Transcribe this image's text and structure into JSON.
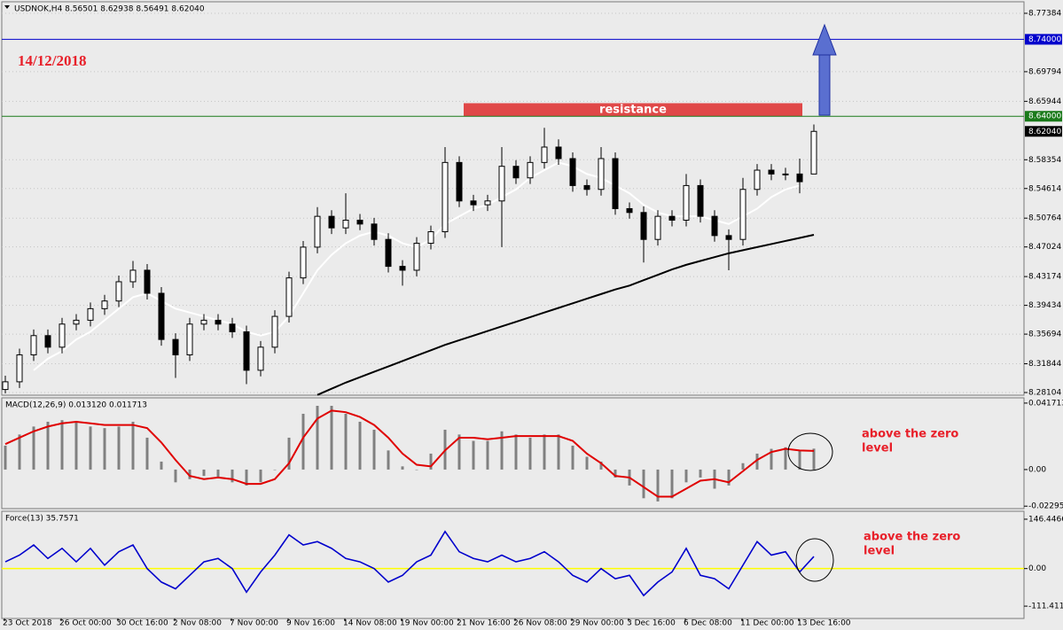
{
  "chart_data": [
    {
      "type": "candlestick",
      "title": "USDNOK,H4  8.56501 8.62938 8.56491 8.62040",
      "open": [
        8.285,
        8.295,
        8.33,
        8.355,
        8.34,
        8.37,
        8.375,
        8.39,
        8.4,
        8.425,
        8.44,
        8.41,
        8.35,
        8.33,
        8.37,
        8.375,
        8.37,
        8.36,
        8.31,
        8.34,
        8.38,
        8.43,
        8.47,
        8.51,
        8.495,
        8.505,
        8.5,
        8.48,
        8.445,
        8.44,
        8.475,
        8.49,
        8.58,
        8.53,
        8.525,
        8.53,
        8.575,
        8.56,
        8.58,
        8.6,
        8.585,
        8.55,
        8.545,
        8.585,
        8.52,
        8.515,
        8.48,
        8.51,
        8.505,
        8.55,
        8.51,
        8.485,
        8.48,
        8.545,
        8.57,
        8.565,
        8.565,
        8.56501
      ],
      "high": [
        8.303,
        8.338,
        8.363,
        8.363,
        8.378,
        8.383,
        8.398,
        8.408,
        8.433,
        8.452,
        8.448,
        8.418,
        8.358,
        8.378,
        8.383,
        8.383,
        8.378,
        8.368,
        8.348,
        8.388,
        8.438,
        8.478,
        8.522,
        8.518,
        8.54,
        8.513,
        8.508,
        8.488,
        8.453,
        8.483,
        8.498,
        8.6,
        8.588,
        8.538,
        8.538,
        8.6,
        8.583,
        8.588,
        8.625,
        8.61,
        8.593,
        8.558,
        8.6,
        8.593,
        8.528,
        8.523,
        8.518,
        8.518,
        8.565,
        8.558,
        8.518,
        8.493,
        8.56,
        8.578,
        8.578,
        8.573,
        8.585,
        8.62938
      ],
      "low": [
        8.28,
        8.287,
        8.322,
        8.332,
        8.332,
        8.362,
        8.367,
        8.382,
        8.392,
        8.417,
        8.402,
        8.342,
        8.3,
        8.322,
        8.362,
        8.362,
        8.352,
        8.292,
        8.302,
        8.332,
        8.372,
        8.422,
        8.462,
        8.487,
        8.487,
        8.492,
        8.472,
        8.437,
        8.42,
        8.432,
        8.467,
        8.482,
        8.522,
        8.517,
        8.517,
        8.47,
        8.552,
        8.552,
        8.572,
        8.577,
        8.542,
        8.537,
        8.537,
        8.512,
        8.507,
        8.45,
        8.472,
        8.497,
        8.497,
        8.502,
        8.477,
        8.44,
        8.472,
        8.537,
        8.557,
        8.557,
        8.54,
        8.56491
      ],
      "close": [
        8.295,
        8.33,
        8.355,
        8.34,
        8.37,
        8.375,
        8.39,
        8.4,
        8.425,
        8.44,
        8.41,
        8.35,
        8.33,
        8.37,
        8.375,
        8.37,
        8.36,
        8.31,
        8.34,
        8.38,
        8.43,
        8.47,
        8.51,
        8.495,
        8.505,
        8.5,
        8.48,
        8.445,
        8.44,
        8.475,
        8.49,
        8.58,
        8.53,
        8.525,
        8.53,
        8.575,
        8.56,
        8.58,
        8.6,
        8.585,
        8.55,
        8.545,
        8.585,
        8.52,
        8.515,
        8.48,
        8.51,
        8.505,
        8.55,
        8.51,
        8.485,
        8.48,
        8.545,
        8.57,
        8.565,
        8.565,
        8.555,
        8.6204
      ],
      "lines": [
        {
          "color": "#ffffff",
          "values": [
            null,
            null,
            8.31,
            8.325,
            8.335,
            8.35,
            8.36,
            8.375,
            8.39,
            8.405,
            8.41,
            8.4,
            8.39,
            8.385,
            8.38,
            8.375,
            8.37,
            8.36,
            8.355,
            8.36,
            8.38,
            8.41,
            8.44,
            8.46,
            8.475,
            8.485,
            8.49,
            8.485,
            8.475,
            8.47,
            8.48,
            8.5,
            8.51,
            8.52,
            8.525,
            8.535,
            8.545,
            8.56,
            8.57,
            8.58,
            8.575,
            8.565,
            8.56,
            8.55,
            8.54,
            8.525,
            8.515,
            8.51,
            8.51,
            8.51,
            8.505,
            8.5,
            8.51,
            8.52,
            8.535,
            8.545,
            8.55,
            null
          ]
        },
        {
          "color": "#000000",
          "values": [
            null,
            null,
            null,
            null,
            null,
            null,
            null,
            null,
            null,
            null,
            null,
            null,
            null,
            null,
            null,
            null,
            null,
            null,
            null,
            null,
            null,
            null,
            8.278,
            8.286,
            8.294,
            8.301,
            8.308,
            8.315,
            8.322,
            8.329,
            8.336,
            8.343,
            8.349,
            8.355,
            8.361,
            8.367,
            8.373,
            8.379,
            8.385,
            8.391,
            8.397,
            8.403,
            8.409,
            8.415,
            8.42,
            8.427,
            8.434,
            8.441,
            8.447,
            8.452,
            8.457,
            8.462,
            8.466,
            8.47,
            8.474,
            8.478,
            8.482,
            8.486
          ]
        }
      ],
      "hlines": [
        {
          "value": 8.74,
          "label": "8.74000",
          "color": "#0000cc"
        },
        {
          "value": 8.64,
          "label": "8.64000",
          "color": "#1a7a1a"
        }
      ],
      "price_label": {
        "value": 8.6204,
        "label": "8.62040"
      },
      "resistance": {
        "label": "resistance",
        "range": [
          8.64,
          8.657
        ],
        "color": "#e04848"
      },
      "date_label": "14/12/2018",
      "ylim": [
        8.2776,
        8.7888
      ],
      "yticks": [
        8.77384,
        8.69794,
        8.65944,
        8.58354,
        8.54614,
        8.50764,
        8.47024,
        8.43174,
        8.39434,
        8.35694,
        8.31844,
        8.28104
      ],
      "grid": true
    },
    {
      "type": "bar",
      "title": "MACD(12,26,9) 0.013120 0.011713",
      "color": "#808080",
      "values": [
        0.015,
        0.022,
        0.027,
        0.03,
        0.031,
        0.03,
        0.027,
        0.026,
        0.027,
        0.03,
        0.02,
        0.005,
        -0.008,
        -0.006,
        -0.004,
        -0.005,
        -0.008,
        -0.01,
        -0.008,
        0.0,
        0.02,
        0.035,
        0.04,
        0.04,
        0.035,
        0.03,
        0.025,
        0.012,
        0.002,
        0.0,
        0.01,
        0.025,
        0.022,
        0.018,
        0.018,
        0.024,
        0.022,
        0.02,
        0.022,
        0.022,
        0.015,
        0.008,
        0.005,
        -0.005,
        -0.01,
        -0.018,
        -0.02,
        -0.018,
        -0.008,
        -0.005,
        -0.012,
        -0.01,
        0.004,
        0.01,
        0.013,
        0.014,
        0.012,
        0.01312
      ],
      "signal": {
        "color": "#e00000",
        "values": [
          0.016,
          0.02,
          0.024,
          0.027,
          0.029,
          0.03,
          0.029,
          0.028,
          0.028,
          0.028,
          0.026,
          0.017,
          0.006,
          -0.004,
          -0.006,
          -0.005,
          -0.006,
          -0.009,
          -0.009,
          -0.006,
          0.004,
          0.02,
          0.032,
          0.037,
          0.036,
          0.033,
          0.028,
          0.02,
          0.01,
          0.003,
          0.002,
          0.012,
          0.02,
          0.02,
          0.019,
          0.02,
          0.021,
          0.021,
          0.021,
          0.021,
          0.018,
          0.01,
          0.004,
          -0.004,
          -0.005,
          -0.011,
          -0.017,
          -0.017,
          -0.012,
          -0.007,
          -0.006,
          -0.008,
          -0.001,
          0.006,
          0.011,
          0.013,
          0.012,
          0.011713
        ]
      },
      "annotation": [
        "above the zero",
        "level"
      ],
      "ylim": [
        -0.0245,
        0.045
      ],
      "yticks": [
        0.041713,
        {
          "value": 0,
          "label": "0.00"
        },
        -0.022954
      ]
    },
    {
      "type": "line",
      "title": "Force(13) 35.7571",
      "color": "#0000cc",
      "zero_line_color": "#ffff00",
      "values": [
        20,
        40,
        70,
        30,
        60,
        20,
        60,
        10,
        50,
        70,
        0,
        -40,
        -60,
        -20,
        20,
        30,
        0,
        -70,
        -10,
        40,
        100,
        70,
        80,
        60,
        30,
        20,
        0,
        -40,
        -20,
        20,
        40,
        110,
        50,
        30,
        20,
        40,
        20,
        30,
        50,
        20,
        -20,
        -40,
        0,
        -30,
        -20,
        -80,
        -40,
        -10,
        60,
        -20,
        -30,
        -60,
        10,
        80,
        40,
        50,
        -10,
        35.7571
      ],
      "annotation": [
        "above the zero",
        "level"
      ],
      "ylim": [
        -148,
        170
      ],
      "yticks": [
        146.4466,
        {
          "value": 0,
          "label": "0.00"
        },
        -111.411
      ],
      "x_labels": [
        "23 Oct 2018",
        "26 Oct 00:00",
        "30 Oct 16:00",
        "2 Nov 08:00",
        "7 Nov 00:00",
        "9 Nov 16:00",
        "14 Nov 08:00",
        "19 Nov 00:00",
        "21 Nov 16:00",
        "26 Nov 08:00",
        "29 Nov 00:00",
        "3 Dec 16:00",
        "6 Dec 08:00",
        "11 Dec 00:00",
        "13 Dec 16:00"
      ]
    }
  ]
}
